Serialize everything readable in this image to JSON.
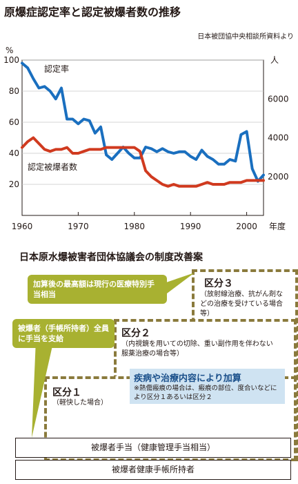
{
  "title": "原爆症認定率と認定被爆者数の推移",
  "source": "日本被団協中央相談所資料より",
  "colors": {
    "rate": "#1a6fbf",
    "count": "#d03a1f",
    "bubble": "#a8b131",
    "dash": "#8a7a3c",
    "blue_box": "#cfe3f2"
  },
  "chart_data": {
    "type": "line",
    "x_label_suffix": "年度",
    "x_ticks": [
      "1960",
      "1970",
      "1980",
      "1990",
      "2000"
    ],
    "xlim": [
      1960,
      2003
    ],
    "left_axis": {
      "unit": "%",
      "ticks": [
        "100",
        "80",
        "60",
        "40",
        "20"
      ],
      "ylim": [
        0,
        100
      ]
    },
    "right_axis": {
      "unit": "人",
      "ticks": [
        "6000",
        "4000",
        "2000"
      ],
      "ylim": [
        0,
        8000
      ]
    },
    "series": [
      {
        "name": "認定率",
        "axis": "left",
        "x": [
          1960,
          1961,
          1962,
          1963,
          1964,
          1965,
          1966,
          1967,
          1968,
          1969,
          1970,
          1971,
          1972,
          1973,
          1974,
          1975,
          1976,
          1977,
          1978,
          1979,
          1980,
          1981,
          1982,
          1983,
          1984,
          1985,
          1986,
          1987,
          1988,
          1989,
          1990,
          1991,
          1992,
          1993,
          1994,
          1995,
          1996,
          1997,
          1998,
          1999,
          2000,
          2001,
          2002,
          2003
        ],
        "values": [
          98,
          95,
          88,
          82,
          83,
          80,
          75,
          82,
          62,
          62,
          59,
          62,
          61,
          53,
          57,
          39,
          36,
          40,
          44,
          40,
          37,
          37,
          44,
          43,
          41,
          43,
          41,
          40,
          41,
          41,
          38,
          36,
          42,
          38,
          36,
          33,
          33,
          36,
          35,
          52,
          54,
          30,
          22,
          26
        ]
      },
      {
        "name": "認定被爆者数",
        "axis": "right",
        "x": [
          1960,
          1961,
          1962,
          1963,
          1964,
          1965,
          1966,
          1967,
          1968,
          1969,
          1970,
          1971,
          1972,
          1973,
          1974,
          1975,
          1976,
          1977,
          1978,
          1979,
          1980,
          1981,
          1982,
          1983,
          1984,
          1985,
          1986,
          1987,
          1988,
          1989,
          1990,
          1991,
          1992,
          1993,
          1994,
          1995,
          1996,
          1997,
          1998,
          1999,
          2000,
          2001,
          2002,
          2003
        ],
        "values": [
          3500,
          3800,
          4000,
          3700,
          3400,
          3300,
          3400,
          3400,
          3500,
          3200,
          3200,
          3300,
          3400,
          3400,
          3400,
          3500,
          3500,
          3500,
          3500,
          3500,
          3500,
          3300,
          2300,
          2000,
          1800,
          1600,
          1500,
          1600,
          1500,
          1500,
          1500,
          1500,
          1600,
          1700,
          1600,
          1600,
          1600,
          1700,
          1700,
          1700,
          1800,
          1800,
          1800,
          1800
        ]
      }
    ]
  },
  "proposal": {
    "title": "日本原水爆被害者団体協議会の制度改善案",
    "kubun3": {
      "label": "区分３",
      "desc": "（放射線治療、抗がん剤などの治療を受けている場合等）"
    },
    "kubun2": {
      "label": "区分２",
      "desc": "（内視鏡を用いての切除、重い副作用を伴わない服薬治療の場合等）"
    },
    "kubun1": {
      "label": "区分１",
      "desc": "（軽快した場合）"
    },
    "bubble_top": "加算後の最高額は現行の医療特別手当相当",
    "bubble_left": "被爆者（手帳所持者）全員に手当を支給",
    "addon_title": "疾病や治療内容により加算",
    "addon_note": "※熱傷瘢痕の場合は、瘢痕の部位、度合いなどにより区分１あるいは区分２",
    "bar1": "被爆者手当（健康管理手当相当）",
    "bar2": "被爆者健康手帳所持者"
  }
}
